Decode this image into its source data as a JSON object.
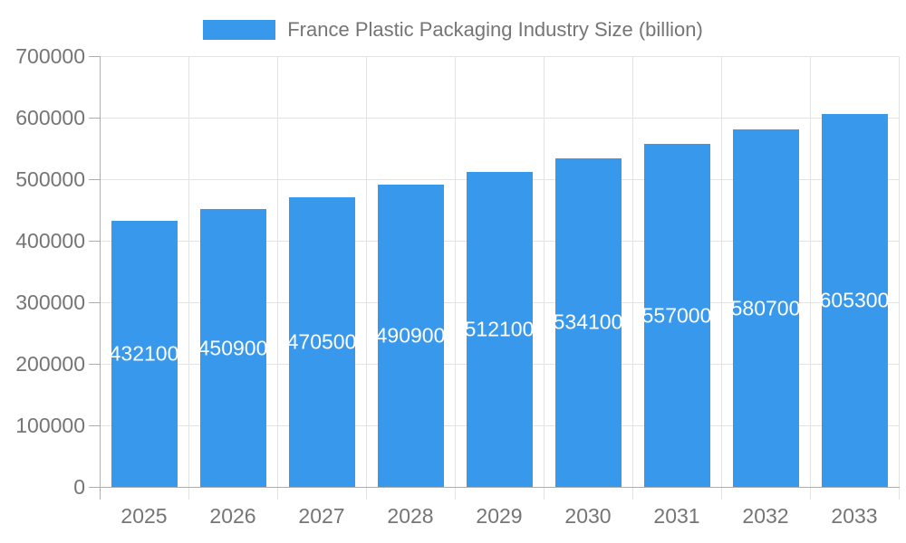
{
  "legend": {
    "series_label": "France Plastic Packaging Industry Size (billion)"
  },
  "chart_data": {
    "type": "bar",
    "title": "France Plastic Packaging Industry Size (billion)",
    "series_name": "France Plastic Packaging Industry Size (billion)",
    "categories": [
      "2025",
      "2026",
      "2027",
      "2028",
      "2029",
      "2030",
      "2031",
      "2032",
      "2033"
    ],
    "values": [
      432100,
      450900,
      470500,
      490900,
      512100,
      534100,
      557000,
      580700,
      605300
    ],
    "data_labels": [
      "432100",
      "450900",
      "470500",
      "490900",
      "512100",
      "534100",
      "557000",
      "580700",
      "605300"
    ],
    "xlabel": "",
    "ylabel": "",
    "ylim": [
      0,
      700000
    ],
    "y_ticks": [
      0,
      100000,
      200000,
      300000,
      400000,
      500000,
      600000,
      700000
    ],
    "y_tick_labels": [
      "0",
      "100000",
      "200000",
      "300000",
      "400000",
      "500000",
      "600000",
      "700000"
    ],
    "grid": true,
    "legend_position": "top",
    "colors": {
      "bar": "#3898EC",
      "data_label": "#FFFFFF",
      "axis_text": "#757575",
      "grid_line": "#E3E3E3",
      "axis_line": "#ADADAD"
    }
  }
}
